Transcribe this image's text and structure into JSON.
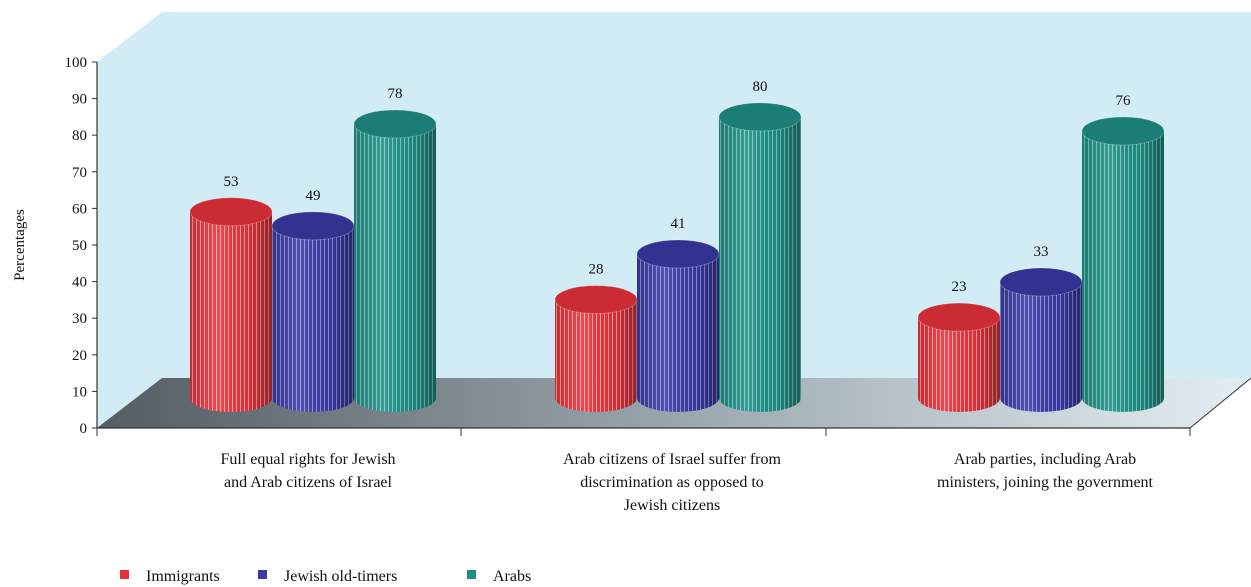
{
  "chart_data": {
    "type": "bar",
    "style": "3d-cylinder",
    "ylabel": "Percentages",
    "ylim": [
      0,
      100
    ],
    "yticks": [
      0,
      10,
      20,
      30,
      40,
      50,
      60,
      70,
      80,
      90,
      100
    ],
    "categories": [
      [
        "Full equal rights for Jewish",
        "and Arab citizens of Israel"
      ],
      [
        "Arab citizens of Israel suffer from",
        "discrimination as opposed to",
        "Jewish citizens"
      ],
      [
        "Arab parties, including Arab",
        "ministers, joining the government"
      ]
    ],
    "series": [
      {
        "name": "Immigrants",
        "color": "#e8323a",
        "values": [
          53,
          28,
          23
        ]
      },
      {
        "name": "Jewish old-timers",
        "color": "#3a3aa6",
        "values": [
          49,
          41,
          33
        ]
      },
      {
        "name": "Arabs",
        "color": "#1f8f86",
        "values": [
          78,
          80,
          76
        ]
      }
    ],
    "legend_position": "bottom-left",
    "colors": {
      "wall": "#d2ecf6",
      "floor": "#9aa6ae"
    }
  }
}
